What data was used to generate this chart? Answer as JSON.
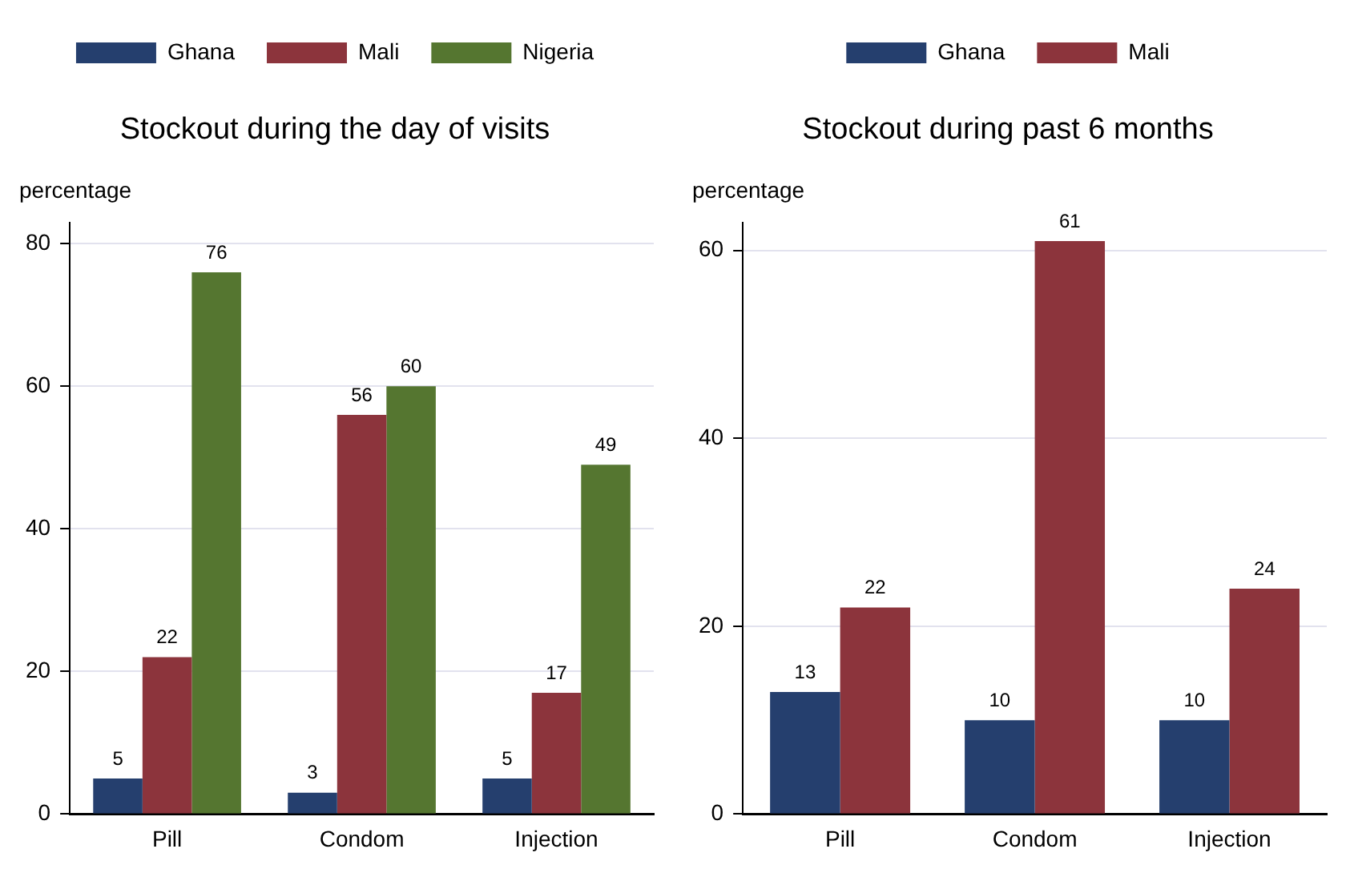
{
  "chart_data": [
    {
      "type": "bar",
      "title": "Stockout during the day of visits",
      "ylabel": "percentage",
      "categories": [
        "Pill",
        "Condom",
        "Injection"
      ],
      "series": [
        {
          "name": "Ghana",
          "color": "#253f6e",
          "values": [
            5,
            3,
            5
          ]
        },
        {
          "name": "Mali",
          "color": "#8c343c",
          "values": [
            22,
            56,
            17
          ]
        },
        {
          "name": "Nigeria",
          "color": "#557630",
          "values": [
            76,
            60,
            49
          ]
        }
      ],
      "ylim": [
        0,
        83
      ],
      "yticks": [
        0,
        20,
        40,
        60,
        80
      ],
      "grid": "y",
      "legend": "top",
      "data_labels": true
    },
    {
      "type": "bar",
      "title": "Stockout during past 6 months",
      "ylabel": "percentage",
      "categories": [
        "Pill",
        "Condom",
        "Injection"
      ],
      "series": [
        {
          "name": "Ghana",
          "color": "#253f6e",
          "values": [
            13,
            10,
            10
          ]
        },
        {
          "name": "Mali",
          "color": "#8c343c",
          "values": [
            22,
            61,
            24
          ]
        }
      ],
      "ylim": [
        0,
        63
      ],
      "yticks": [
        0,
        20,
        40,
        60
      ],
      "grid": "y",
      "legend": "top",
      "data_labels": true
    }
  ]
}
